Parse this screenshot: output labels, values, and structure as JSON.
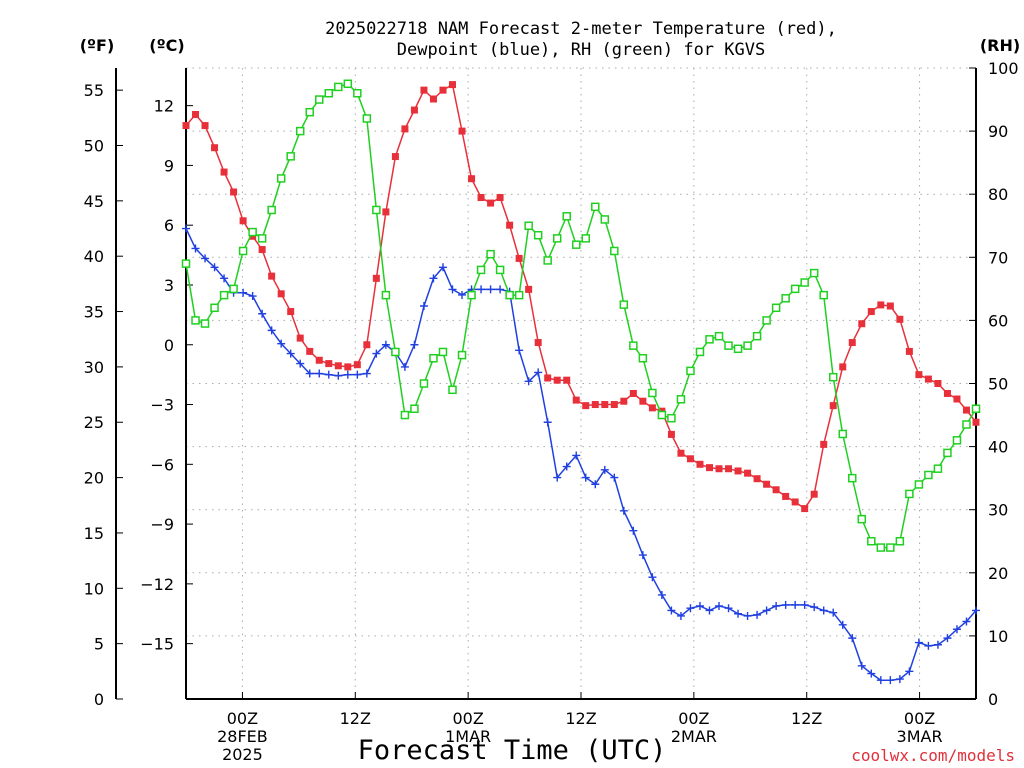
{
  "chart_data": {
    "type": "line",
    "title_line1": "2025022718 NAM Forecast 2-meter Temperature (red),",
    "title_line2": "Dewpoint (blue), RH (green) for KGVS",
    "xlabel": "Forecast Time (UTC)",
    "credit": "coolwx.com/models",
    "unit_f": "(ºF)",
    "unit_c": "(ºC)",
    "unit_rh": "(RH)",
    "colors": {
      "temperature": "#e8303a",
      "dewpoint": "#2040e0",
      "rh": "#20d020",
      "grid": "#aaaaaa"
    },
    "x_forecast_hours": [
      0,
      84
    ],
    "x_ticks": [
      {
        "hour": 6,
        "labels": [
          "00Z",
          "28FEB",
          "2025"
        ]
      },
      {
        "hour": 18,
        "labels": [
          "12Z"
        ]
      },
      {
        "hour": 30,
        "labels": [
          "00Z",
          "1MAR"
        ]
      },
      {
        "hour": 42,
        "labels": [
          "12Z"
        ]
      },
      {
        "hour": 54,
        "labels": [
          "00Z",
          "2MAR"
        ]
      },
      {
        "hour": 66,
        "labels": [
          "12Z"
        ]
      },
      {
        "hour": 78,
        "labels": [
          "00Z",
          "3MAR"
        ]
      }
    ],
    "y_f_ticks": [
      "0",
      "5",
      "10",
      "15",
      "20",
      "25",
      "30",
      "35",
      "40",
      "45",
      "50",
      "55"
    ],
    "y_c_ticks": [
      "−15",
      "−12",
      "−9",
      "−6",
      "−3",
      "0",
      "3",
      "6",
      "9",
      "12"
    ],
    "y_rh_ticks": [
      "0",
      "10",
      "20",
      "30",
      "40",
      "50",
      "60",
      "70",
      "80",
      "90",
      "100"
    ],
    "f_range": [
      0,
      57
    ],
    "rh_range": [
      0,
      100
    ],
    "grid": true,
    "series": [
      {
        "key": "temperature",
        "name": "Temperature (red)",
        "unit": "°F",
        "values": [
          51.8,
          52.8,
          51.8,
          49.8,
          47.6,
          45.8,
          43.2,
          41.8,
          40.6,
          38.2,
          36.6,
          35.0,
          32.6,
          31.4,
          30.6,
          30.3,
          30.1,
          30.0,
          30.2,
          32.0,
          38.0,
          44.0,
          49.0,
          51.5,
          53.2,
          55.0,
          54.2,
          55.0,
          55.5,
          51.3,
          47.0,
          45.3,
          44.8,
          45.3,
          42.8,
          39.8,
          37.0,
          32.2,
          29.0,
          28.8,
          28.8,
          27.0,
          26.5,
          26.6,
          26.6,
          26.6,
          26.9,
          27.6,
          26.9,
          26.3,
          26.0,
          23.9,
          22.2,
          21.7,
          21.2,
          20.9,
          20.8,
          20.8,
          20.6,
          20.4,
          19.9,
          19.4,
          18.9,
          18.3,
          17.8,
          17.2,
          18.5,
          23.0,
          26.5,
          30.0,
          32.2,
          33.9,
          35.0,
          35.6,
          35.5,
          34.3,
          31.4,
          29.3,
          28.9,
          28.5,
          27.6,
          27.1,
          26.1,
          25.0
        ]
      },
      {
        "key": "dewpoint",
        "name": "Dewpoint (blue)",
        "unit": "°F",
        "values": [
          42.5,
          40.7,
          39.8,
          39.0,
          38.0,
          36.7,
          36.7,
          36.4,
          34.8,
          33.3,
          32.1,
          31.2,
          30.3,
          29.4,
          29.4,
          29.3,
          29.2,
          29.3,
          29.3,
          29.4,
          31.2,
          32.0,
          31.3,
          30.0,
          32.0,
          35.5,
          38.0,
          39.0,
          37.0,
          36.5,
          37.0,
          37.0,
          37.0,
          37.0,
          36.8,
          31.5,
          28.7,
          29.5,
          25.0,
          20.0,
          21.0,
          22.0,
          20.0,
          19.4,
          20.7,
          20.0,
          17.0,
          15.2,
          13.0,
          11.0,
          9.4,
          8.0,
          7.5,
          8.2,
          8.4,
          8.0,
          8.4,
          8.2,
          7.7,
          7.5,
          7.6,
          8.0,
          8.4,
          8.5,
          8.5,
          8.5,
          8.3,
          8.0,
          7.8,
          6.7,
          5.5,
          3.0,
          2.3,
          1.7,
          1.7,
          1.8,
          2.5,
          5.1,
          4.8,
          4.9,
          5.5,
          6.3,
          7.0,
          8.0
        ]
      },
      {
        "key": "rh",
        "name": "RH (green)",
        "unit": "%",
        "values": [
          69,
          60,
          59.5,
          62,
          64,
          65,
          71,
          74,
          73,
          77.5,
          82.5,
          86,
          90,
          93,
          95,
          96,
          97,
          97.5,
          96,
          92,
          77.5,
          64,
          55,
          45,
          46,
          50,
          54,
          55,
          49,
          54.5,
          64,
          68,
          70.5,
          68,
          64,
          64,
          75,
          73.5,
          69.5,
          73,
          76.5,
          72,
          73,
          78,
          76,
          71,
          62.5,
          56,
          54,
          48.5,
          45,
          44.5,
          47.5,
          52,
          55,
          57,
          57.5,
          56,
          55.5,
          56,
          57.5,
          60,
          62,
          63.5,
          65,
          66,
          67.5,
          64,
          51,
          42,
          35,
          28.5,
          25,
          24,
          24,
          25,
          32.5,
          34,
          35.5,
          36.5,
          39,
          41,
          43.5,
          46
        ]
      }
    ]
  }
}
